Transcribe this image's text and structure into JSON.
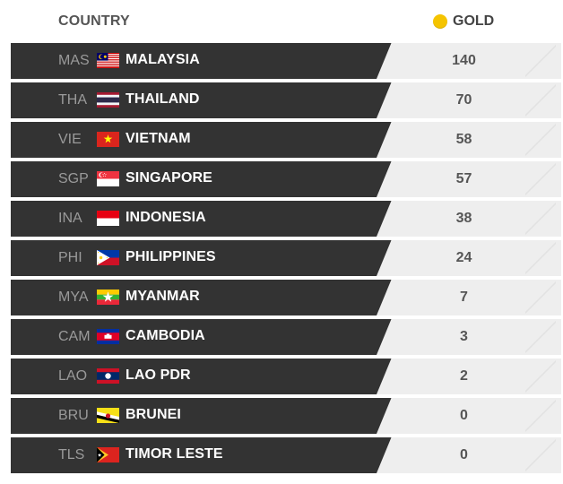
{
  "header": {
    "country_label": "COUNTRY",
    "gold_label": "GOLD",
    "gold_color": "#f5c400"
  },
  "rows": [
    {
      "code": "MAS",
      "name": "MALAYSIA",
      "gold": "140",
      "flag": "malaysia-flag-icon"
    },
    {
      "code": "THA",
      "name": "THAILAND",
      "gold": "70",
      "flag": "thailand-flag-icon"
    },
    {
      "code": "VIE",
      "name": "VIETNAM",
      "gold": "58",
      "flag": "vietnam-flag-icon"
    },
    {
      "code": "SGP",
      "name": "SINGAPORE",
      "gold": "57",
      "flag": "singapore-flag-icon"
    },
    {
      "code": "INA",
      "name": "INDONESIA",
      "gold": "38",
      "flag": "indonesia-flag-icon"
    },
    {
      "code": "PHI",
      "name": "PHILIPPINES",
      "gold": "24",
      "flag": "philippines-flag-icon"
    },
    {
      "code": "MYA",
      "name": "MYANMAR",
      "gold": "7",
      "flag": "myanmar-flag-icon"
    },
    {
      "code": "CAM",
      "name": "CAMBODIA",
      "gold": "3",
      "flag": "cambodia-flag-icon"
    },
    {
      "code": "LAO",
      "name": "LAO PDR",
      "gold": "2",
      "flag": "laos-flag-icon"
    },
    {
      "code": "BRU",
      "name": "BRUNEI",
      "gold": "0",
      "flag": "brunei-flag-icon"
    },
    {
      "code": "TLS",
      "name": "TIMOR LESTE",
      "gold": "0",
      "flag": "timor-leste-flag-icon"
    }
  ]
}
